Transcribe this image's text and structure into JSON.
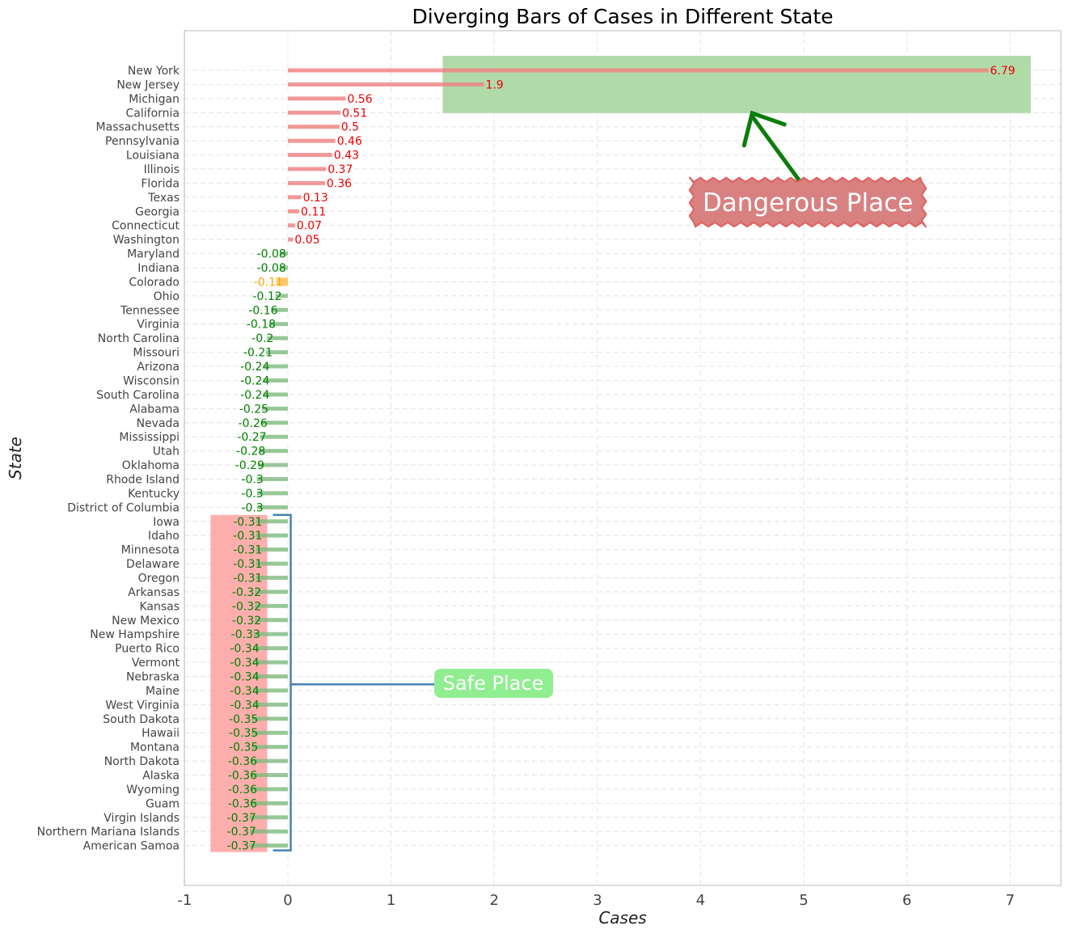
{
  "chart_data": {
    "type": "bar",
    "orientation": "horizontal",
    "title": "Diverging Bars of Cases in Different State",
    "xlabel": "Cases",
    "ylabel": "State",
    "xlim": [
      -1,
      7.5
    ],
    "xticks": [
      -1,
      0,
      1,
      2,
      3,
      4,
      5,
      6,
      7
    ],
    "grid": true,
    "colors": {
      "positive": "#f08080",
      "negative": "#7fba7f",
      "highlight": "#ffbf4d",
      "positive_label": "#ee0000",
      "negative_label": "#008000",
      "highlight_label": "#ffa500"
    },
    "highlight_category": "Colorado",
    "categories": [
      "New York",
      "New Jersey",
      "Michigan",
      "California",
      "Massachusetts",
      "Pennsylvania",
      "Louisiana",
      "Illinois",
      "Florida",
      "Texas",
      "Georgia",
      "Connecticut",
      "Washington",
      "Maryland",
      "Indiana",
      "Colorado",
      "Ohio",
      "Tennessee",
      "Virginia",
      "North Carolina",
      "Missouri",
      "Arizona",
      "Wisconsin",
      "South Carolina",
      "Alabama",
      "Nevada",
      "Mississippi",
      "Utah",
      "Oklahoma",
      "Rhode Island",
      "Kentucky",
      "District of Columbia",
      "Iowa",
      "Idaho",
      "Minnesota",
      "Delaware",
      "Oregon",
      "Arkansas",
      "Kansas",
      "New Mexico",
      "New Hampshire",
      "Puerto Rico",
      "Vermont",
      "Nebraska",
      "Maine",
      "West Virginia",
      "South Dakota",
      "Hawaii",
      "Montana",
      "North Dakota",
      "Alaska",
      "Wyoming",
      "Guam",
      "Virgin Islands",
      "Northern Mariana Islands",
      "American Samoa"
    ],
    "values": [
      6.79,
      1.9,
      0.56,
      0.51,
      0.5,
      0.46,
      0.43,
      0.37,
      0.36,
      0.13,
      0.11,
      0.07,
      0.05,
      -0.08,
      -0.08,
      -0.11,
      -0.12,
      -0.16,
      -0.18,
      -0.2,
      -0.21,
      -0.24,
      -0.24,
      -0.24,
      -0.25,
      -0.26,
      -0.27,
      -0.28,
      -0.29,
      -0.3,
      -0.3,
      -0.3,
      -0.31,
      -0.31,
      -0.31,
      -0.31,
      -0.31,
      -0.32,
      -0.32,
      -0.32,
      -0.33,
      -0.34,
      -0.34,
      -0.34,
      -0.34,
      -0.34,
      -0.35,
      -0.35,
      -0.35,
      -0.36,
      -0.36,
      -0.36,
      -0.36,
      -0.37,
      -0.37,
      -0.37
    ],
    "labels": [
      "6.79",
      "1.9",
      "0.56",
      "0.51",
      "0.5",
      "0.46",
      "0.43",
      "0.37",
      "0.36",
      "0.13",
      "0.11",
      "0.07",
      "0.05",
      "-0.08",
      "-0.08",
      "-0.11",
      "-0.12",
      "-0.16",
      "-0.18",
      "-0.2",
      "-0.21",
      "-0.24",
      "-0.24",
      "-0.24",
      "-0.25",
      "-0.26",
      "-0.27",
      "-0.28",
      "-0.29",
      "-0.3",
      "-0.3",
      "-0.3",
      "-0.31",
      "-0.31",
      "-0.31",
      "-0.31",
      "-0.31",
      "-0.32",
      "-0.32",
      "-0.32",
      "-0.33",
      "-0.34",
      "-0.34",
      "-0.34",
      "-0.34",
      "-0.34",
      "-0.35",
      "-0.35",
      "-0.35",
      "-0.36",
      "-0.36",
      "-0.36",
      "-0.36",
      "-0.37",
      "-0.37",
      "-0.37"
    ],
    "annotations": {
      "dangerous": {
        "text": "Dangerous Place",
        "box_color": "#d98080",
        "box_edge": "#e06060",
        "arrow_color": "#0a7d0a",
        "region_color": "#a8d6a0",
        "region_x": [
          1.5,
          7.2
        ],
        "region_categories": [
          "New York",
          "Michigan"
        ],
        "label_anchor_x": 5.05,
        "arrow_tip_x": 4.5,
        "arrow_tail_x": 4.95
      },
      "safe": {
        "text": "Safe Place",
        "box_color": "#90ee90",
        "bracket_color": "#4682b4",
        "region_color": "#ffaaaa",
        "region_x": [
          -0.75,
          -0.2
        ],
        "region_categories": [
          "Iowa",
          "American Samoa"
        ],
        "label_anchor_x": 1.45,
        "bracket_x": 0.02
      }
    }
  }
}
